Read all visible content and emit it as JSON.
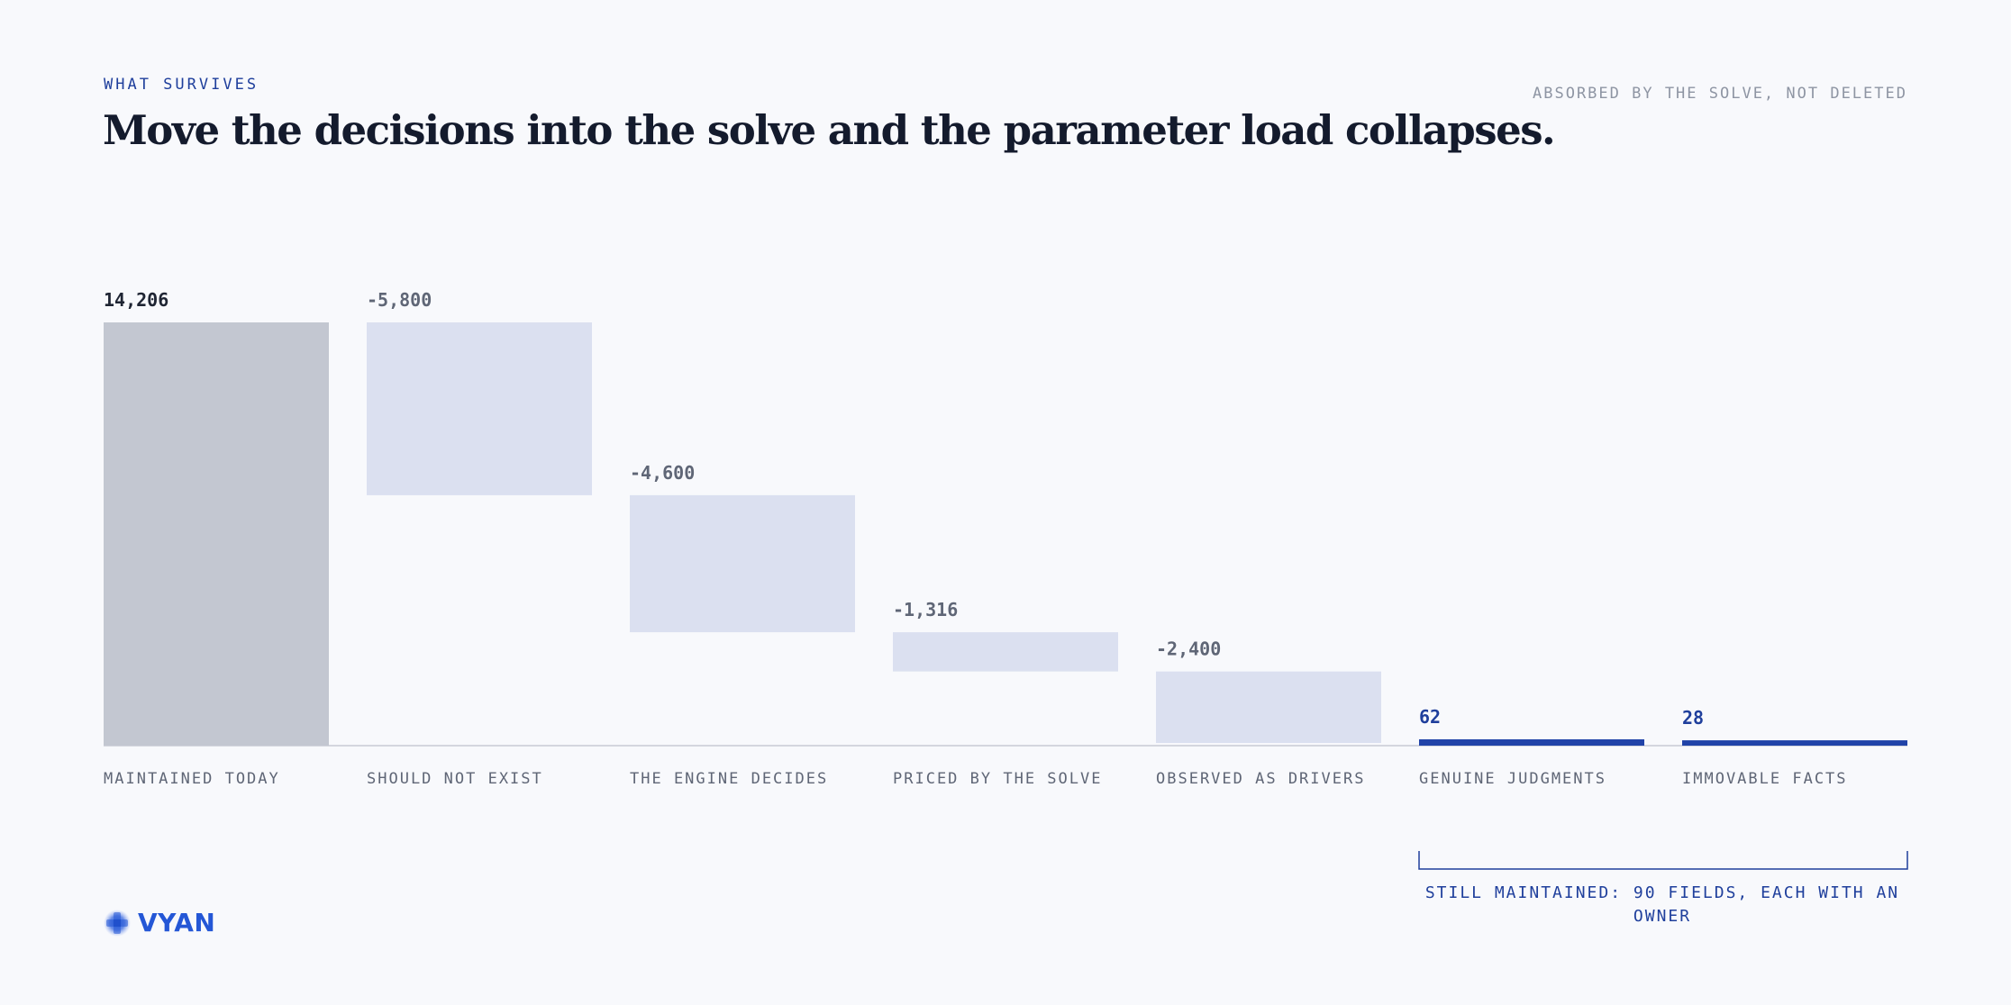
{
  "header": {
    "eyebrow": "WHAT SURVIVES",
    "kicker": "ABSORBED BY THE SOLVE, NOT DELETED",
    "title": "Move the decisions into the solve and the parameter load collapses."
  },
  "colors": {
    "background": "#f8f9fc",
    "start_bar": "#c3c7d1",
    "reduction_bar": "#dbe0f0",
    "remaining_bar": "#2143a8",
    "accent_text": "#1f3f9c",
    "dark_text": "#1f2533",
    "muted_text": "#5f6676",
    "axis": "#c7cad3"
  },
  "chart_data": {
    "type": "bar",
    "subtype": "waterfall",
    "categories": [
      "MAINTAINED TODAY",
      "SHOULD NOT EXIST",
      "THE ENGINE DECIDES",
      "PRICED BY THE SOLVE",
      "OBSERVED AS DRIVERS",
      "GENUINE JUDGMENTS",
      "IMMOVABLE FACTS"
    ],
    "values": [
      14206,
      -5800,
      -4600,
      -1316,
      -2400,
      62,
      28
    ],
    "value_labels": [
      "14,206",
      "-5,800",
      "-4,600",
      "-1,316",
      "-2,400",
      "62",
      "28"
    ],
    "kinds": [
      "start",
      "reduction",
      "reduction",
      "reduction",
      "reduction",
      "remaining",
      "remaining"
    ],
    "ylim": [
      0,
      14206
    ],
    "grid": false,
    "legend": "none",
    "annotation": {
      "text": "STILL MAINTAINED: 90 FIELDS, EACH WITH AN OWNER",
      "spans": [
        "GENUINE JUDGMENTS",
        "IMMOVABLE FACTS"
      ]
    }
  },
  "brand": {
    "logo_icon": "star-burst-icon",
    "name": "VYAN"
  }
}
